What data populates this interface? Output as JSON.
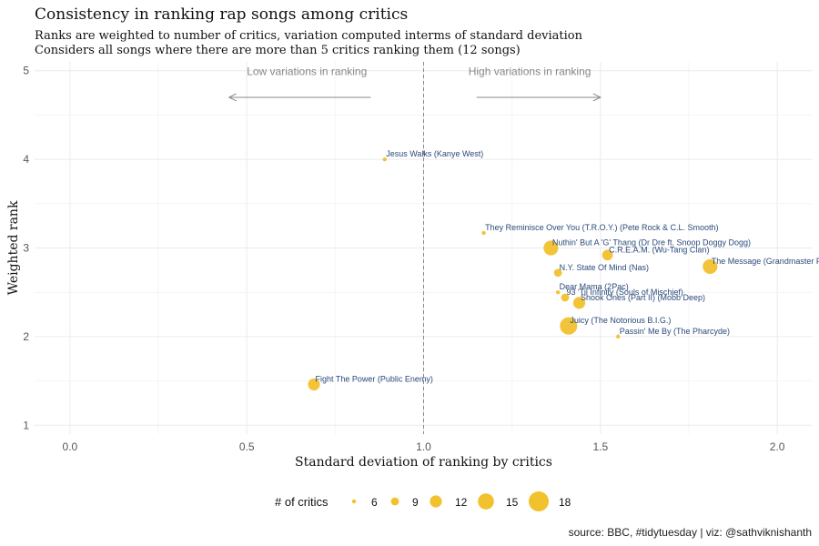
{
  "chart_data": {
    "type": "scatter",
    "title": "Consistency in ranking rap songs among critics",
    "subtitle_lines": [
      "Ranks are weighted to number of critics, variation computed interms of standard deviation",
      "Considers all songs where there are more than 5 critics ranking them (12 songs)"
    ],
    "xlabel": "Standard deviation of ranking by critics",
    "ylabel": "Weighted rank",
    "xlim": [
      -0.1,
      2.1
    ],
    "ylim": [
      0.9,
      5.1
    ],
    "xticks": [
      0.0,
      0.5,
      1.0,
      1.5,
      2.0
    ],
    "xtick_labels": [
      "0.0",
      "0.5",
      "1.0",
      "1.5",
      "2.0"
    ],
    "yticks": [
      1,
      2,
      3,
      4,
      5
    ],
    "ytick_labels": [
      "1",
      "2",
      "3",
      "4",
      "5"
    ],
    "grid": true,
    "reference_line_x": 1.0,
    "point_color": "#F2C12E",
    "label_color": "#2a4a7a",
    "annotations": [
      {
        "text": "Low variations in ranking",
        "direction": "left"
      },
      {
        "text": "High variations in ranking",
        "direction": "right"
      }
    ],
    "points": [
      {
        "label": "Jesus Walks (Kanye West)",
        "x": 0.89,
        "y": 4.0,
        "critics": 6
      },
      {
        "label": "They Reminisce Over You (T.R.O.Y.) (Pete Rock & C.L. Smooth)",
        "x": 1.17,
        "y": 3.17,
        "critics": 6
      },
      {
        "label": "Nuthin' But A 'G' Thang (Dr Dre ft. Snoop Doggy Dogg)",
        "x": 1.36,
        "y": 3.0,
        "critics": 14
      },
      {
        "label": "C.R.E.A.M. (Wu-Tang Clan)",
        "x": 1.52,
        "y": 2.92,
        "critics": 11
      },
      {
        "label": "The Message (Grandmaster Flash & The Furious Five)",
        "x": 1.81,
        "y": 2.79,
        "critics": 14
      },
      {
        "label": "N.Y. State Of Mind (Nas)",
        "x": 1.38,
        "y": 2.72,
        "critics": 9
      },
      {
        "label": "Dear Mama (2Pac)",
        "x": 1.38,
        "y": 2.5,
        "critics": 6
      },
      {
        "label": "93 'Til Infinity (Souls of Mischief)",
        "x": 1.4,
        "y": 2.44,
        "critics": 9
      },
      {
        "label": "Shook Ones (Part II) (Mobb Deep)",
        "x": 1.44,
        "y": 2.38,
        "critics": 12
      },
      {
        "label": "Juicy (The Notorious B.I.G.)",
        "x": 1.41,
        "y": 2.12,
        "critics": 16
      },
      {
        "label": "Passin' Me By (The Pharcyde)",
        "x": 1.55,
        "y": 2.0,
        "critics": 6
      },
      {
        "label": "Fight The Power (Public Enemy)",
        "x": 0.69,
        "y": 1.46,
        "critics": 12
      }
    ],
    "size_legend": {
      "title": "# of critics",
      "values": [
        6,
        9,
        12,
        15,
        18
      ]
    },
    "caption": "source: BBC, #tidytuesday | viz: @sathviknishanth"
  }
}
